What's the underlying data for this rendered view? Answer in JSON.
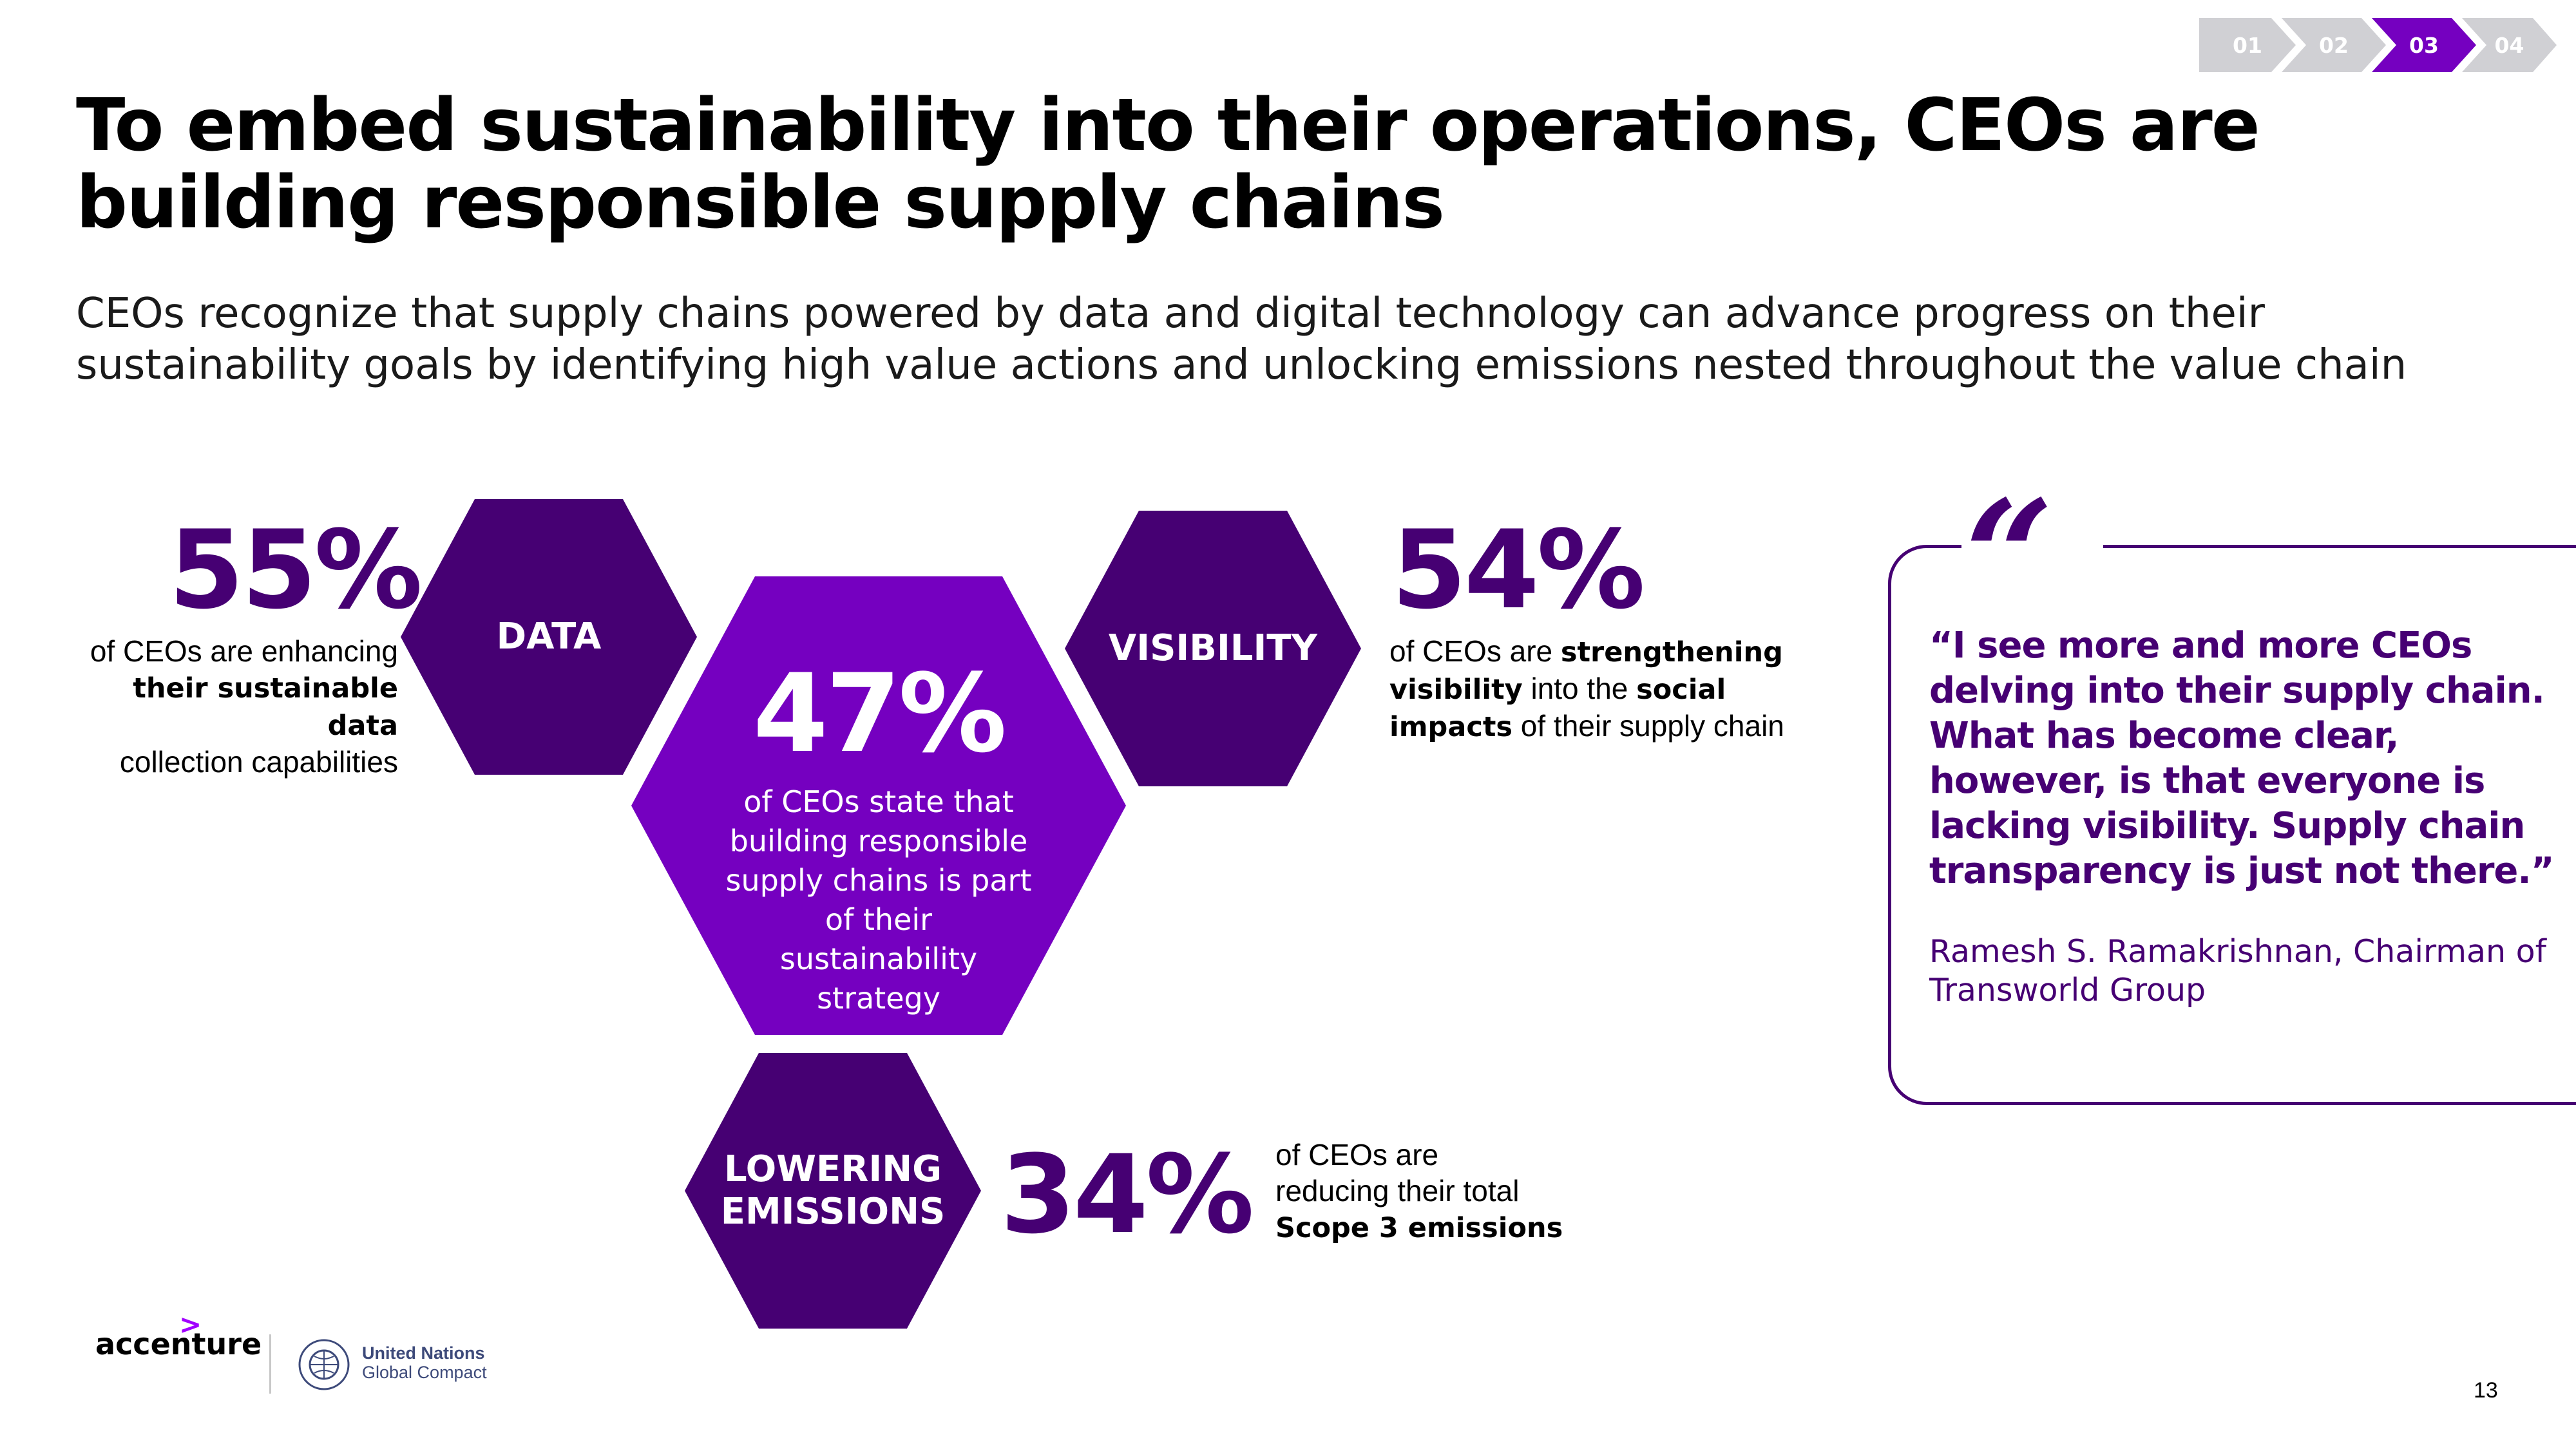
{
  "nav": {
    "steps": [
      "01",
      "02",
      "03",
      "04"
    ],
    "active": "03",
    "colors": {
      "active": "#7500c0",
      "inactive": "#d0d0d4"
    }
  },
  "title": "To embed sustainability into their operations, CEOs are building responsible supply chains",
  "subtitle": "CEOs recognize that supply chains powered by data and digital technology can advance progress on their sustainability goals by identifying high value actions and unlocking emissions nested throughout the value chain",
  "hexagons": {
    "data": "DATA",
    "visibility": "VISIBILITY",
    "lowering_line1": "LOWERING",
    "lowering_line2": "EMISSIONS",
    "center_stat": "47%",
    "center_text": "of CEOs state that building responsible supply chains is part of their sustainability strategy"
  },
  "stats": {
    "data": {
      "value": "55%",
      "pre": "of CEOs are enhancing",
      "bold": "their sustainable data",
      "post": "collection capabilities"
    },
    "visibility": {
      "value": "54%",
      "t1": "of CEOs are ",
      "b1": "strengthening",
      "b2": "visibility",
      "t2": " into the ",
      "b3": "social",
      "b4": "impacts",
      "t3": " of their supply chain"
    },
    "emissions": {
      "value": "34%",
      "t1": "of CEOs are",
      "t2": "reducing their total",
      "bold": "Scope 3 emissions"
    }
  },
  "quote": {
    "mark": "“",
    "text": "“I see more and more CEOs delving into their supply chain. What has become clear, however, is that everyone is lacking visibility. Supply chain transparency is just not there.”",
    "attribution": "Ramesh S. Ramakrishnan, Chairman of Transworld Group"
  },
  "footer": {
    "accenture_logo": "accenture",
    "un_line1": "United Nations",
    "un_line2": "Global Compact",
    "page_number": "13"
  },
  "colors": {
    "dark_purple": "#460073",
    "bright_purple": "#7500c0",
    "accent_purple": "#a100ff"
  }
}
